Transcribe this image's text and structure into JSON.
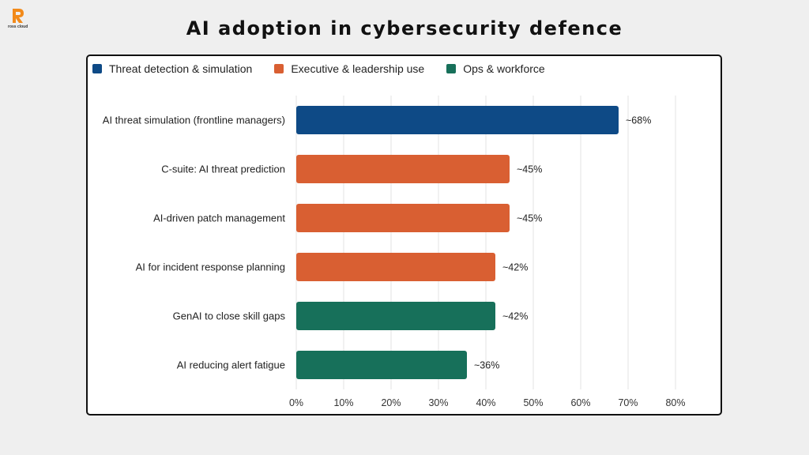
{
  "brand": {
    "name": "ross cloud"
  },
  "title": "AI adoption in cybersecurity defence",
  "colors": {
    "threat": "#0e4a86",
    "executive": "#d95f32",
    "ops": "#17705a",
    "logo": "#f28a1a"
  },
  "legend": [
    {
      "label": "Threat detection & simulation",
      "color": "#0e4a86"
    },
    {
      "label": "Executive & leadership use",
      "color": "#d95f32"
    },
    {
      "label": "Ops & workforce",
      "color": "#17705a"
    }
  ],
  "chart_data": {
    "type": "bar",
    "orientation": "horizontal",
    "title": "AI adoption in cybersecurity defence",
    "xlim": [
      0,
      80
    ],
    "xticks": [
      "0%",
      "10%",
      "20%",
      "30%",
      "40%",
      "50%",
      "60%",
      "70%",
      "80%"
    ],
    "grid": true,
    "legend_position": "top-left",
    "categories": [
      "AI threat simulation (frontline managers)",
      "C-suite: AI threat prediction",
      "AI-driven patch management",
      "AI for incident response planning",
      "GenAI to close skill gaps",
      "AI reducing alert fatigue"
    ],
    "values": [
      68,
      45,
      45,
      42,
      42,
      36
    ],
    "value_labels": [
      "~68%",
      "~45%",
      "~45%",
      "~42%",
      "~42%",
      "~36%"
    ],
    "groups": [
      "Threat detection & simulation",
      "Executive & leadership use",
      "Executive & leadership use",
      "Executive & leadership use",
      "Ops & workforce",
      "Ops & workforce"
    ],
    "bar_colors": [
      "#0e4a86",
      "#d95f32",
      "#d95f32",
      "#d95f32",
      "#17705a",
      "#17705a"
    ]
  }
}
